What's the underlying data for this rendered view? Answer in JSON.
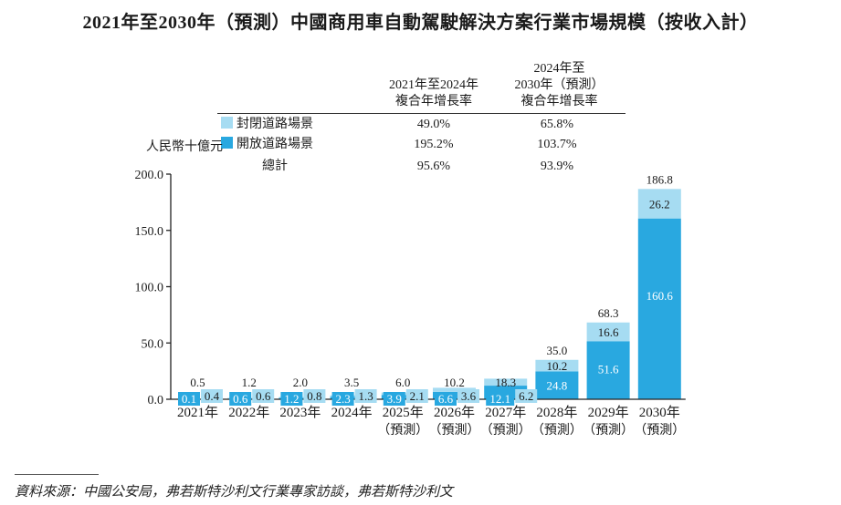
{
  "title": "2021年至2030年（預測）中國商用車自動駕駛解決方案行業市場規模（按收入計）",
  "unit_label": "人民幣十億元",
  "cagr_table": {
    "col1_header": [
      "2021年至2024年",
      "複合年增長率"
    ],
    "col2_header": [
      "2024年至",
      "2030年（預測）",
      "複合年增長率"
    ],
    "rows": [
      {
        "label": "封閉道路場景",
        "swatch": "closed",
        "col1": "49.0%",
        "col2": "65.8%"
      },
      {
        "label": "開放道路場景",
        "swatch": "open",
        "col1": "195.2%",
        "col2": "103.7%"
      },
      {
        "label": "總計",
        "swatch": "",
        "col1": "95.6%",
        "col2": "93.9%"
      }
    ]
  },
  "colors": {
    "open": "#29a8e0",
    "closed": "#a6dcf2"
  },
  "chart_data": {
    "type": "bar",
    "stacked": true,
    "title": "2021年至2030年（預測）中國商用車自動駕駛解決方案行業市場規模（按收入計）",
    "ylabel": "人民幣十億元",
    "xlabel": "",
    "ylim": [
      0,
      200
    ],
    "yticks": [
      "0.0",
      "50.0",
      "100.0",
      "150.0",
      "200.0"
    ],
    "ytick_values": [
      0,
      50,
      100,
      150,
      200
    ],
    "grid": false,
    "categories": [
      "2021年",
      "2022年",
      "2023年",
      "2024年",
      "2025年",
      "2026年",
      "2027年",
      "2028年",
      "2029年",
      "2030年"
    ],
    "category_sub": [
      "",
      "",
      "",
      "",
      "（預測）",
      "（預測）",
      "（預測）",
      "（預測）",
      "（預測）",
      "（預測）"
    ],
    "series": [
      {
        "name": "開放道路場景",
        "color": "#29a8e0",
        "values": [
          0.1,
          0.6,
          1.2,
          2.3,
          3.9,
          6.6,
          12.1,
          24.8,
          51.6,
          160.6
        ],
        "labels": [
          "0.1",
          "0.6",
          "1.2",
          "2.3",
          "3.9",
          "6.6",
          "12.1",
          "24.8",
          "51.6",
          "160.6"
        ]
      },
      {
        "name": "封閉道路場景",
        "color": "#a6dcf2",
        "values": [
          0.4,
          0.6,
          0.8,
          1.3,
          2.1,
          3.6,
          6.2,
          10.2,
          16.6,
          26.2
        ],
        "labels": [
          "0.4",
          "0.6",
          "0.8",
          "1.3",
          "2.1",
          "3.6",
          "6.2",
          "10.2",
          "16.6",
          "26.2"
        ]
      }
    ],
    "totals": [
      0.5,
      1.2,
      2.0,
      3.5,
      6.0,
      10.2,
      18.3,
      35.0,
      68.3,
      186.8
    ],
    "total_labels": [
      "0.5",
      "1.2",
      "2.0",
      "3.5",
      "6.0",
      "10.2",
      "18.3",
      "35.0",
      "68.3",
      "186.8"
    ],
    "legend": [
      "封閉道路場景",
      "開放道路場景"
    ],
    "legend_position": "top"
  },
  "source": "資料來源：中國公安局，弗若斯特沙利文行業專家訪談，弗若斯特沙利文"
}
